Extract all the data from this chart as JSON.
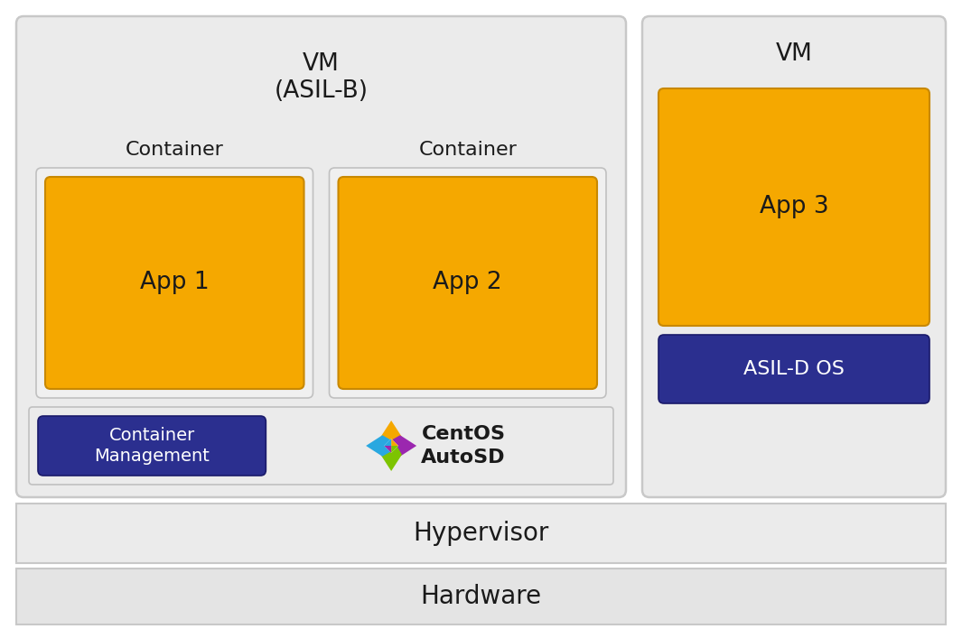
{
  "outer_bg": "#ffffff",
  "orange_color": "#F5A800",
  "navy_color": "#2B2F8F",
  "light_gray": "#EBEBEB",
  "bottom_gray": "#E4E4E4",
  "border_gray": "#C8C8C8",
  "container_bg": "#F0F0F0",
  "container_border": "#C0C0C0",
  "bottom_bar_bg": "#EBEBEB",
  "white": "#FFFFFF",
  "text_dark": "#1a1a1a",
  "vm_asilb_label": "VM\n(ASIL-B)",
  "vm_label": "VM",
  "container1_label": "Container",
  "container2_label": "Container",
  "app1_label": "App 1",
  "app2_label": "App 2",
  "app3_label": "App 3",
  "container_mgmt_label": "Container\nManagement",
  "autosd_text1": "CentOS",
  "autosd_text2": "AutoSD",
  "asild_os_label": "ASIL-D OS",
  "hypervisor_label": "Hypervisor",
  "hardware_label": "Hardware"
}
